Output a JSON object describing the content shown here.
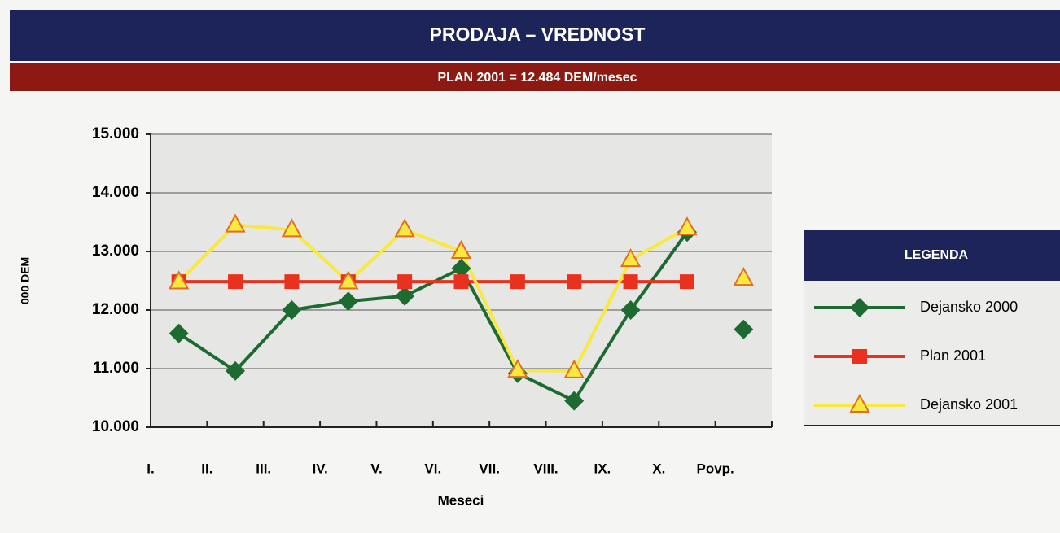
{
  "chart_data": {
    "type": "line",
    "title": "PRODAJA – VREDNOST",
    "subtitle": "PLAN 2001 = 12.484 DEM/mesec",
    "y_label": "000 DEM",
    "x_label": "Meseci",
    "legend_title": "LEGENDA",
    "categories": [
      "I.",
      "II.",
      "III.",
      "IV.",
      "V.",
      "VI.",
      "VII.",
      "VIII.",
      "IX.",
      "X.",
      "Povp."
    ],
    "series": [
      {
        "name": "Dejansko 2000",
        "color": "#1e6b32",
        "marker": "diamond",
        "values": [
          11600,
          10960,
          12000,
          12150,
          12240,
          12710,
          10920,
          10450,
          12000,
          13330,
          11670
        ]
      },
      {
        "name": "Plan 2001",
        "color": "#e8321e",
        "marker": "square",
        "values": [
          12484,
          12484,
          12484,
          12484,
          12484,
          12484,
          12484,
          12484,
          12484,
          12484,
          null
        ]
      },
      {
        "name": "Dejansko 2001",
        "color": "#f8e840",
        "marker": "triangle",
        "values": [
          12480,
          13450,
          13370,
          12480,
          13370,
          13000,
          10970,
          10960,
          12860,
          13400,
          12540
        ]
      }
    ],
    "ylim": [
      10000,
      15000
    ],
    "yticks": [
      {
        "value": 10000,
        "label": "10.000"
      },
      {
        "value": 11000,
        "label": "11.000"
      },
      {
        "value": 12000,
        "label": "12.000"
      },
      {
        "value": 13000,
        "label": "13.000"
      },
      {
        "value": 14000,
        "label": "14.000"
      },
      {
        "value": 15000,
        "label": "15.000"
      }
    ],
    "grid": true,
    "legend": "right"
  }
}
